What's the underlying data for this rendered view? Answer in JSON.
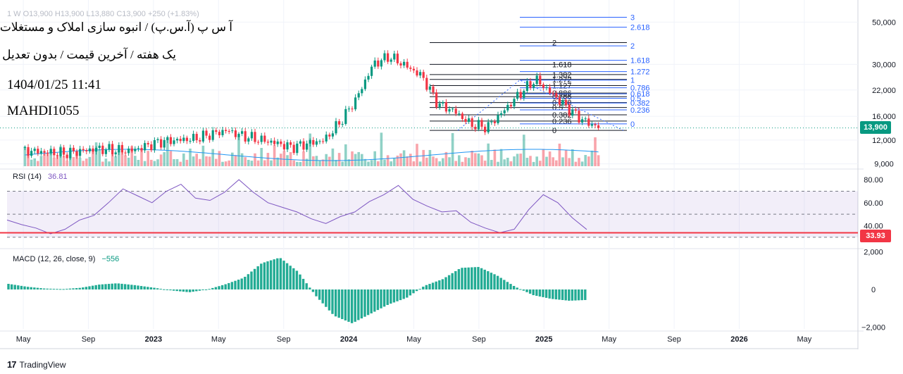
{
  "header": {
    "ohlc_line": "1  W O13,900 H13,900 L13,880 C13,900 +250 (+1.83%)",
    "title": "آ س پ (آ.س.پ) / انبوه سازی املاک و مستغلات",
    "subtitle": "یک هفته / آخرین قیمت / بدون تعدیل",
    "datetime": "1404/01/25 11:41",
    "author": "MAHDI1055"
  },
  "price_tag": "13,900",
  "rsi": {
    "label": "RSI (14)",
    "value": "36.81",
    "tag": "33.93"
  },
  "macd": {
    "label": "MACD (12, 26, close, 9)",
    "value": "−556"
  },
  "footer": {
    "brand": "TradingView"
  },
  "chart_data": [
    {
      "type": "candlestick",
      "scale": "log",
      "y_ticks": [
        "50,000",
        "30,000",
        "22,000",
        "16,000",
        "12,000",
        "9,000"
      ],
      "y_tick_values": [
        50000,
        30000,
        22000,
        16000,
        12000,
        9000
      ],
      "x_ticks": [
        "May",
        "Sep",
        "2023",
        "May",
        "Sep",
        "2024",
        "May",
        "Sep",
        "2025",
        "May",
        "Sep",
        "2026",
        "May"
      ],
      "last_price": 13900,
      "close_path": [
        [
          "2022-05",
          10500
        ],
        [
          "2022-07",
          10200
        ],
        [
          "2022-09",
          10800
        ],
        [
          "2022-11",
          10500
        ],
        [
          "2023-01",
          11800
        ],
        [
          "2023-03",
          12200
        ],
        [
          "2023-05",
          13500
        ],
        [
          "2023-06",
          12600
        ],
        [
          "2023-08",
          11600
        ],
        [
          "2023-09",
          11000
        ],
        [
          "2023-10",
          11500
        ],
        [
          "2023-11",
          12000
        ],
        [
          "2023-12",
          15000
        ],
        [
          "2024-01",
          20000
        ],
        [
          "2024-02",
          30000
        ],
        [
          "2024-03",
          33000
        ],
        [
          "2024-04",
          29500
        ],
        [
          "2024-05",
          26000
        ],
        [
          "2024-06",
          18500
        ],
        [
          "2024-07",
          17000
        ],
        [
          "2024-08",
          14500
        ],
        [
          "2024-09",
          14000
        ],
        [
          "2024-10",
          17000
        ],
        [
          "2024-11",
          21000
        ],
        [
          "2024-12",
          25000
        ],
        [
          "2025-01",
          21000
        ],
        [
          "2025-02",
          17500
        ],
        [
          "2025-03",
          15000
        ],
        [
          "2025-04",
          13900
        ]
      ],
      "fib_black": [
        {
          "label": "2",
          "price": 39000
        },
        {
          "label": "1.618",
          "price": 30000
        },
        {
          "label": "1.382",
          "price": 26500
        },
        {
          "label": "1.272",
          "price": 25000
        },
        {
          "label": "1.127",
          "price": 23200
        },
        {
          "label": "0.886",
          "price": 21200
        },
        {
          "label": "0.786",
          "price": 20300
        },
        {
          "label": "0.618",
          "price": 18900
        },
        {
          "label": "0.5",
          "price": 17800
        },
        {
          "label": "0.382",
          "price": 16300
        },
        {
          "label": "0.236",
          "price": 15100
        },
        {
          "label": "0",
          "price": 13500
        }
      ],
      "fib_blue": [
        {
          "label": "3",
          "price": 53000
        },
        {
          "label": "2.618",
          "price": 47000
        },
        {
          "label": "2",
          "price": 37500
        },
        {
          "label": "1.618",
          "price": 31500
        },
        {
          "label": "1.272",
          "price": 27500
        },
        {
          "label": "1",
          "price": 24800
        },
        {
          "label": "0.786",
          "price": 22600
        },
        {
          "label": "0.618",
          "price": 21000
        },
        {
          "label": "0.5",
          "price": 19900
        },
        {
          "label": "0.382",
          "price": 18800
        },
        {
          "label": "0.236",
          "price": 17300
        },
        {
          "label": "0",
          "price": 14600
        }
      ]
    },
    {
      "type": "line",
      "name": "RSI (14)",
      "y_ticks": [
        "80.00",
        "60.00",
        "40.00"
      ],
      "y_tick_values": [
        80,
        60,
        40
      ],
      "bands": [
        70,
        50,
        30
      ],
      "values": [
        45,
        41,
        38,
        33,
        37,
        45,
        49,
        60,
        72,
        66,
        60,
        70,
        76,
        64,
        62,
        69,
        80,
        69,
        60,
        56,
        52,
        46,
        42,
        48,
        52,
        61,
        67,
        75,
        63,
        57,
        52,
        53,
        43,
        38,
        34,
        37,
        54,
        67,
        60,
        47,
        36.8
      ]
    },
    {
      "type": "bar",
      "name": "MACD (12, 26, close, 9)",
      "y_ticks": [
        "2,000",
        "0",
        "−2,000"
      ],
      "y_tick_values": [
        2000,
        0,
        -2000
      ],
      "values": [
        300,
        150,
        50,
        20,
        90,
        260,
        330,
        230,
        100,
        -50,
        -150,
        0,
        280,
        620,
        1400,
        1700,
        950,
        -350,
        -1400,
        -1800,
        -1300,
        -800,
        -450,
        200,
        550,
        1150,
        1200,
        750,
        150,
        -300,
        -500,
        -600,
        -556
      ]
    }
  ]
}
